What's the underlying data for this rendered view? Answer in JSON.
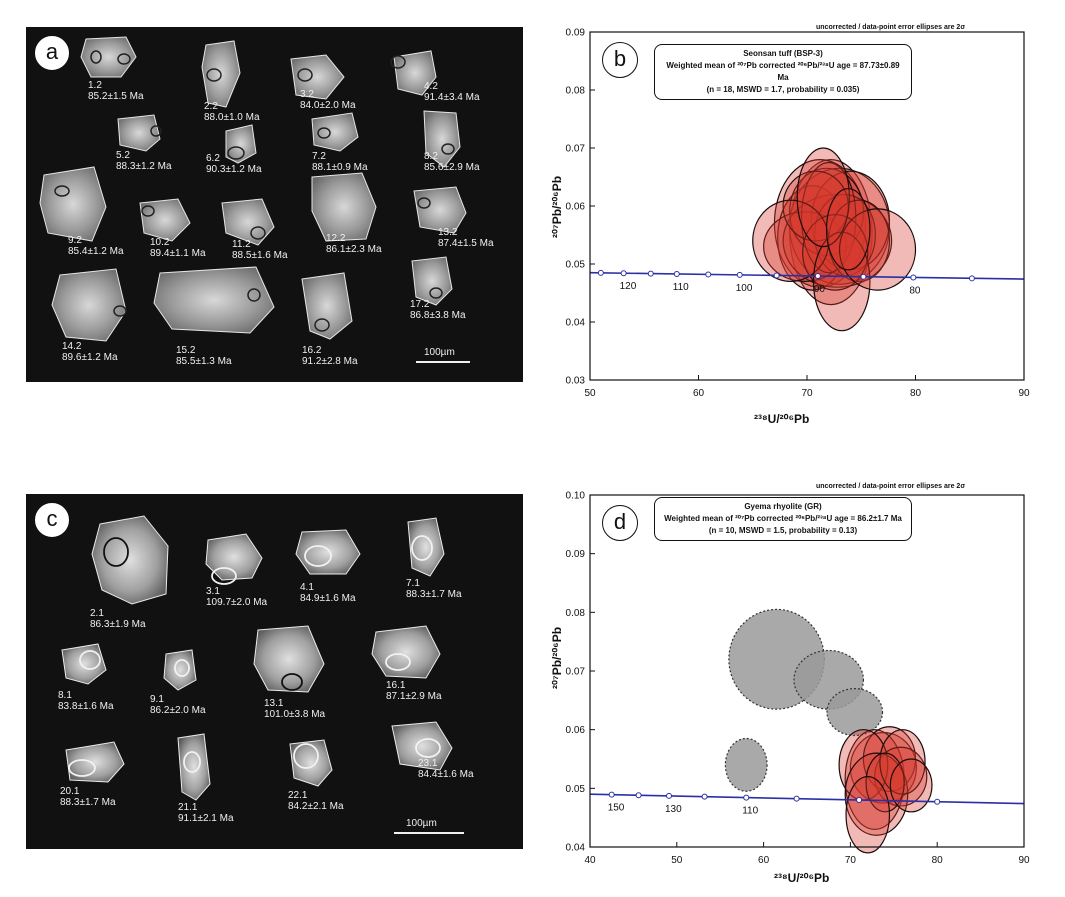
{
  "panel_a": {
    "letter": "a",
    "grains": [
      {
        "label": "1.2",
        "age": "85.2±1.5 Ma"
      },
      {
        "label": "2.2",
        "age": "88.0±1.0 Ma"
      },
      {
        "label": "3.2",
        "age": "84.0±2.0 Ma"
      },
      {
        "label": "4.2",
        "age": "91.4±3.4 Ma"
      },
      {
        "label": "5.2",
        "age": "88.3±1.2 Ma"
      },
      {
        "label": "6.2",
        "age": "90.3±1.2 Ma"
      },
      {
        "label": "7.2",
        "age": "88.1±0.9 Ma"
      },
      {
        "label": "8.2",
        "age": "85.6±2.9 Ma"
      },
      {
        "label": "9.2",
        "age": "85.4±1.2 Ma"
      },
      {
        "label": "10.2",
        "age": "89.4±1.1 Ma"
      },
      {
        "label": "11.2",
        "age": "88.5±1.6 Ma"
      },
      {
        "label": "12.2",
        "age": "86.1±2.3 Ma"
      },
      {
        "label": "13.2",
        "age": "87.4±1.5 Ma"
      },
      {
        "label": "14.2",
        "age": "89.6±1.2 Ma"
      },
      {
        "label": "15.2",
        "age": "85.5±1.3 Ma"
      },
      {
        "label": "16.2",
        "age": "91.2±2.8 Ma"
      },
      {
        "label": "17.2",
        "age": "86.8±3.8 Ma"
      }
    ],
    "scale_label": "100µm"
  },
  "panel_c": {
    "letter": "c",
    "grains": [
      {
        "label": "2.1",
        "age": "86.3±1.9 Ma"
      },
      {
        "label": "3.1",
        "age": "109.7±2.0 Ma"
      },
      {
        "label": "4.1",
        "age": "84.9±1.6 Ma"
      },
      {
        "label": "7.1",
        "age": "88.3±1.7 Ma"
      },
      {
        "label": "8.1",
        "age": "83.8±1.6 Ma"
      },
      {
        "label": "9.1",
        "age": "86.2±2.0 Ma"
      },
      {
        "label": "13.1",
        "age": "101.0±3.8 Ma"
      },
      {
        "label": "16.1",
        "age": "87.1±2.9 Ma"
      },
      {
        "label": "20.1",
        "age": "88.3±1.7 Ma"
      },
      {
        "label": "21.1",
        "age": "91.1±2.1 Ma"
      },
      {
        "label": "22.1",
        "age": "84.2±2.1 Ma"
      },
      {
        "label": "23.1",
        "age": "84.4±1.6 Ma"
      }
    ],
    "scale_label": "100µm"
  },
  "chart_data": [
    {
      "type": "scatter",
      "panel_letter": "b",
      "note": "uncorrected / data-point error ellipses are 2σ",
      "box_title": "Seonsan tuff (BSP-3)",
      "box_line2": "Weighted mean of ²⁰⁷Pb corrected ²⁰⁶Pb/²³⁸U age = 87.73±0.89 Ma",
      "box_line3": "(n = 18, MSWD = 1.7, probability = 0.035)",
      "xlabel": "²³⁸U/²⁰⁶Pb",
      "ylabel": "²⁰⁷Pb/²⁰⁶Pb",
      "xlim": [
        50,
        90
      ],
      "ylim": [
        0.03,
        0.09
      ],
      "xticks": [
        "50",
        "60",
        "70",
        "80",
        "90"
      ],
      "yticks": [
        "0.03",
        "0.04",
        "0.05",
        "0.06",
        "0.07",
        "0.08",
        "0.09"
      ],
      "concordia_ages": [
        {
          "label": "120",
          "x": 53.1
        },
        {
          "label": "110",
          "x": 58.0
        },
        {
          "label": "100",
          "x": 63.8
        },
        {
          "label": "90",
          "x": 71.0
        },
        {
          "label": "80",
          "x": 79.8
        }
      ],
      "concordia_points_x": [
        51.0,
        53.1,
        55.6,
        58.0,
        60.9,
        63.8,
        67.2,
        71.0,
        75.2,
        79.8,
        85.2
      ],
      "concordia_y": [
        0.0485,
        0.0474
      ],
      "ellipses": [
        {
          "cx": 72.2,
          "cy": 0.0555,
          "rx": 3.8,
          "ry": 0.0125,
          "grey": false
        },
        {
          "cx": 71.2,
          "cy": 0.057,
          "rx": 4.2,
          "ry": 0.011,
          "grey": false
        },
        {
          "cx": 73.0,
          "cy": 0.0565,
          "rx": 4.6,
          "ry": 0.01,
          "grey": false
        },
        {
          "cx": 70.5,
          "cy": 0.0545,
          "rx": 3.2,
          "ry": 0.009,
          "grey": false
        },
        {
          "cx": 72.8,
          "cy": 0.054,
          "rx": 5.0,
          "ry": 0.008,
          "grey": false
        },
        {
          "cx": 74.0,
          "cy": 0.0575,
          "rx": 3.6,
          "ry": 0.0085,
          "grey": false
        },
        {
          "cx": 71.8,
          "cy": 0.059,
          "rx": 3.4,
          "ry": 0.0075,
          "grey": false
        },
        {
          "cx": 69.8,
          "cy": 0.053,
          "rx": 3.8,
          "ry": 0.006,
          "grey": false
        },
        {
          "cx": 73.5,
          "cy": 0.055,
          "rx": 2.8,
          "ry": 0.007,
          "grey": false
        },
        {
          "cx": 72.0,
          "cy": 0.058,
          "rx": 2.5,
          "ry": 0.0095,
          "grey": false
        },
        {
          "cx": 70.8,
          "cy": 0.06,
          "rx": 3.0,
          "ry": 0.006,
          "grey": false
        },
        {
          "cx": 74.8,
          "cy": 0.054,
          "rx": 2.8,
          "ry": 0.007,
          "grey": false
        },
        {
          "cx": 72.6,
          "cy": 0.052,
          "rx": 3.0,
          "ry": 0.0065,
          "grey": false
        },
        {
          "cx": 68.5,
          "cy": 0.054,
          "rx": 3.5,
          "ry": 0.007,
          "grey": false
        },
        {
          "cx": 73.2,
          "cy": 0.047,
          "rx": 2.6,
          "ry": 0.0085,
          "grey": false
        },
        {
          "cx": 76.5,
          "cy": 0.0525,
          "rx": 3.5,
          "ry": 0.007,
          "grey": false
        },
        {
          "cx": 71.5,
          "cy": 0.0615,
          "rx": 2.4,
          "ry": 0.0085,
          "grey": false
        },
        {
          "cx": 73.8,
          "cy": 0.056,
          "rx": 2.0,
          "ry": 0.007,
          "grey": false
        }
      ]
    },
    {
      "type": "scatter",
      "panel_letter": "d",
      "note": "uncorrected / data-point error ellipses are 2σ",
      "box_title": "Gyema rhyolite (GR)",
      "box_line2": "Weighted mean of ²⁰⁷Pb corrected ²⁰⁶Pb/²³⁸U age = 86.2±1.7 Ma",
      "box_line3": "(n = 10, MSWD = 1.5, probability = 0.13)",
      "xlabel": "²³⁸U/²⁰⁶Pb",
      "ylabel": "²⁰⁷Pb/²⁰⁶Pb",
      "xlim": [
        40,
        90
      ],
      "ylim": [
        0.04,
        0.1
      ],
      "xticks": [
        "40",
        "50",
        "60",
        "70",
        "80",
        "90"
      ],
      "yticks": [
        "0.04",
        "0.05",
        "0.06",
        "0.07",
        "0.08",
        "0.09",
        "0.10"
      ],
      "concordia_ages": [
        {
          "label": "150",
          "x": 42.5
        },
        {
          "label": "130",
          "x": 49.1
        },
        {
          "label": "110",
          "x": 58.0
        }
      ],
      "concordia_points_x": [
        42.5,
        45.6,
        49.1,
        53.2,
        58.0,
        63.8,
        71.0,
        80.0
      ],
      "concordia_y": [
        0.049,
        0.0474
      ],
      "ellipses": [
        {
          "cx": 61.5,
          "cy": 0.072,
          "rx": 5.5,
          "ry": 0.0085,
          "grey": true
        },
        {
          "cx": 67.5,
          "cy": 0.0685,
          "rx": 4.0,
          "ry": 0.005,
          "grey": true
        },
        {
          "cx": 70.5,
          "cy": 0.063,
          "rx": 3.2,
          "ry": 0.004,
          "grey": true
        },
        {
          "cx": 58.0,
          "cy": 0.054,
          "rx": 2.4,
          "ry": 0.0045,
          "grey": true
        },
        {
          "cx": 73.8,
          "cy": 0.0535,
          "rx": 3.8,
          "ry": 0.006,
          "grey": false
        },
        {
          "cx": 72.8,
          "cy": 0.0515,
          "rx": 3.4,
          "ry": 0.0085,
          "grey": false
        },
        {
          "cx": 74.5,
          "cy": 0.055,
          "rx": 3.0,
          "ry": 0.0055,
          "grey": false
        },
        {
          "cx": 75.8,
          "cy": 0.052,
          "rx": 3.0,
          "ry": 0.005,
          "grey": false
        },
        {
          "cx": 71.5,
          "cy": 0.054,
          "rx": 2.8,
          "ry": 0.006,
          "grey": false
        },
        {
          "cx": 73.0,
          "cy": 0.049,
          "rx": 3.6,
          "ry": 0.007,
          "grey": false
        },
        {
          "cx": 76.0,
          "cy": 0.0545,
          "rx": 2.6,
          "ry": 0.0055,
          "grey": false
        },
        {
          "cx": 74.0,
          "cy": 0.051,
          "rx": 2.2,
          "ry": 0.005,
          "grey": false
        },
        {
          "cx": 72.0,
          "cy": 0.0455,
          "rx": 2.5,
          "ry": 0.0065,
          "grey": false
        },
        {
          "cx": 77.0,
          "cy": 0.0505,
          "rx": 2.4,
          "ry": 0.0045,
          "grey": false
        }
      ]
    }
  ],
  "colors": {
    "photo_background": "#111111",
    "ellipse_red_fill": "#d63a2e",
    "ellipse_red_stroke": "#1a0b0b",
    "ellipse_grey_fill": "#9a9a9a",
    "concordia_line": "#2b2fa6"
  }
}
